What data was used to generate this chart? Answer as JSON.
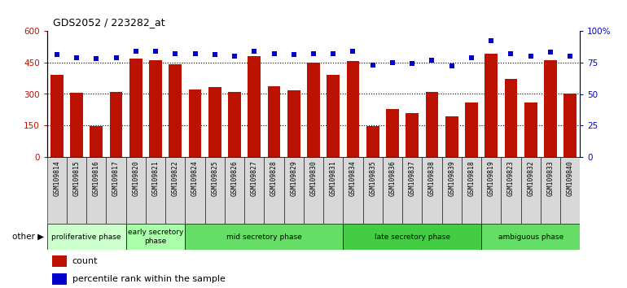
{
  "title": "GDS2052 / 223282_at",
  "samples": [
    "GSM109814",
    "GSM109815",
    "GSM109816",
    "GSM109817",
    "GSM109820",
    "GSM109821",
    "GSM109822",
    "GSM109824",
    "GSM109825",
    "GSM109826",
    "GSM109827",
    "GSM109828",
    "GSM109829",
    "GSM109830",
    "GSM109831",
    "GSM109834",
    "GSM109835",
    "GSM109836",
    "GSM109837",
    "GSM109838",
    "GSM109839",
    "GSM109818",
    "GSM109819",
    "GSM109823",
    "GSM109832",
    "GSM109833",
    "GSM109840"
  ],
  "counts": [
    390,
    305,
    148,
    308,
    470,
    462,
    440,
    322,
    332,
    310,
    480,
    335,
    318,
    450,
    390,
    455,
    148,
    230,
    210,
    310,
    195,
    258,
    490,
    372,
    258,
    460,
    302
  ],
  "percentiles": [
    81,
    79,
    78,
    79,
    84,
    84,
    82,
    82,
    81,
    80,
    84,
    82,
    81,
    82,
    82,
    84,
    73,
    75,
    74,
    77,
    72,
    79,
    92,
    82,
    80,
    83,
    80
  ],
  "phases": [
    {
      "label": "proliferative phase",
      "start": 0,
      "end": 4,
      "color": "#ccffcc"
    },
    {
      "label": "early secretory\nphase",
      "start": 4,
      "end": 7,
      "color": "#aaffaa"
    },
    {
      "label": "mid secretory phase",
      "start": 7,
      "end": 15,
      "color": "#66dd66"
    },
    {
      "label": "late secretory phase",
      "start": 15,
      "end": 22,
      "color": "#44cc44"
    },
    {
      "label": "ambiguous phase",
      "start": 22,
      "end": 27,
      "color": "#66dd66"
    }
  ],
  "bar_color": "#bb1100",
  "dot_color": "#0000cc",
  "ylim_left": [
    0,
    600
  ],
  "ylim_right": [
    0,
    100
  ],
  "yticks_left": [
    0,
    150,
    300,
    450,
    600
  ],
  "ytick_labels_left": [
    "0",
    "150",
    "300",
    "450",
    "600"
  ],
  "yticks_right": [
    0,
    25,
    50,
    75,
    100
  ],
  "ytick_labels_right": [
    "0",
    "25",
    "50",
    "75",
    "100%"
  ],
  "grid_lines": [
    150,
    300,
    450
  ],
  "plot_bg_color": "#ffffff",
  "label_box_color": "#d8d8d8"
}
